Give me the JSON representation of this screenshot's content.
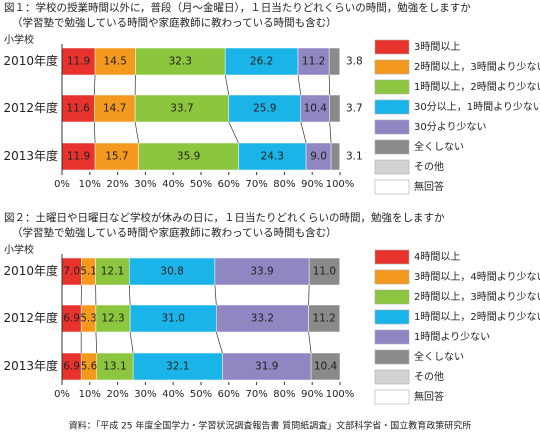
{
  "chart_data": [
    {
      "type": "stacked-bar",
      "orientation": "horizontal",
      "title": "図１：学校の授業時間以外に，普段（月～金曜日），１日当たりどれくらいの時間，勉強をしますか",
      "subtitle": "（学習塾で勉強している時間や家庭教師に教わっている時間も含む）",
      "ylabel": "小学校",
      "categories": [
        "2010年度",
        "2012年度",
        "2013年度"
      ],
      "series": [
        {
          "name": "3時間以上",
          "color": "#e8322d",
          "values": [
            11.9,
            11.6,
            11.9
          ]
        },
        {
          "name": "2時間以上，3時間より少ない",
          "color": "#f39a1e",
          "values": [
            14.5,
            14.7,
            15.7
          ]
        },
        {
          "name": "1時間以上，2時間より少ない",
          "color": "#8cc63f",
          "values": [
            32.3,
            33.7,
            35.9
          ]
        },
        {
          "name": "30分以上，1時間より少ない",
          "color": "#1ab4e8",
          "values": [
            26.2,
            25.9,
            24.3
          ]
        },
        {
          "name": "30分より少ない",
          "color": "#8f86c2",
          "values": [
            11.2,
            10.4,
            9.0
          ],
          "value_labels": [
            "11.2",
            "10.4",
            "9.0"
          ]
        },
        {
          "name": "全くしない",
          "color": "#8a8a8a",
          "values": [
            3.8,
            3.7,
            3.1
          ]
        },
        {
          "name": "その他",
          "color": "#d2d2d2",
          "values": [
            0.1,
            0,
            0.1
          ]
        },
        {
          "name": "無回答",
          "color": "#ffffff",
          "values": [
            0,
            0,
            0
          ]
        }
      ],
      "xlim": [
        0,
        100
      ],
      "xticks": [
        {
          "value": 0,
          "label": "0%"
        },
        {
          "value": 10,
          "label": "10%"
        },
        {
          "value": 20,
          "label": "20%"
        },
        {
          "value": 30,
          "label": "30%"
        },
        {
          "value": 40,
          "label": "40%"
        },
        {
          "value": 50,
          "label": "50%"
        },
        {
          "value": 60,
          "label": "60%"
        },
        {
          "value": 70,
          "label": "70%"
        },
        {
          "value": 80,
          "label": "80%"
        },
        {
          "value": 90,
          "label": "90%"
        },
        {
          "value": 100,
          "label": "100%"
        }
      ]
    },
    {
      "type": "stacked-bar",
      "orientation": "horizontal",
      "title": "図２：土曜日や日曜日など学校が休みの日に，１日当たりどれくらいの時間，勉強をしますか",
      "subtitle": "（学習塾で勉強している時間や家庭教師に教わっている時間も含む）",
      "ylabel": "小学校",
      "categories": [
        "2010年度",
        "2012年度",
        "2013年度"
      ],
      "series": [
        {
          "name": "4時間以上",
          "color": "#e8322d",
          "values": [
            7.0,
            6.9,
            6.9
          ],
          "value_labels": [
            "7.0",
            "6.9",
            "6.9"
          ]
        },
        {
          "name": "3時間以上，4時間より少ない",
          "color": "#f39a1e",
          "values": [
            5.1,
            5.3,
            5.6
          ]
        },
        {
          "name": "2時間以上，3時間より少ない",
          "color": "#8cc63f",
          "values": [
            12.1,
            12.3,
            13.1
          ]
        },
        {
          "name": "1時間以上，2時間より少ない",
          "color": "#1ab4e8",
          "values": [
            30.8,
            31.0,
            32.1
          ],
          "value_labels": [
            "30.8",
            "31.0",
            "32.1"
          ]
        },
        {
          "name": "1時間より少ない",
          "color": "#8f86c2",
          "values": [
            33.9,
            33.2,
            31.9
          ]
        },
        {
          "name": "全くしない",
          "color": "#8a8a8a",
          "values": [
            11.0,
            11.2,
            10.4
          ],
          "value_labels": [
            "11.0",
            "11.2",
            "10.4"
          ]
        },
        {
          "name": "その他",
          "color": "#d2d2d2",
          "values": [
            0.1,
            0.1,
            0
          ]
        },
        {
          "name": "無回答",
          "color": "#ffffff",
          "values": [
            0,
            0,
            0
          ]
        }
      ],
      "xlim": [
        0,
        100
      ],
      "xticks": [
        {
          "value": 0,
          "label": "0%"
        },
        {
          "value": 10,
          "label": "10%"
        },
        {
          "value": 20,
          "label": "20%"
        },
        {
          "value": 30,
          "label": "30%"
        },
        {
          "value": 40,
          "label": "40%"
        },
        {
          "value": 50,
          "label": "50%"
        },
        {
          "value": 60,
          "label": "60%"
        },
        {
          "value": 70,
          "label": "70%"
        },
        {
          "value": 80,
          "label": "80%"
        },
        {
          "value": 90,
          "label": "90%"
        },
        {
          "value": 100,
          "label": "100%"
        }
      ]
    }
  ],
  "source": "資料：「平成 25 年度全国学力・学習状況調査報告書 質問紙調査」文部科学省・国立教育政策研究所"
}
